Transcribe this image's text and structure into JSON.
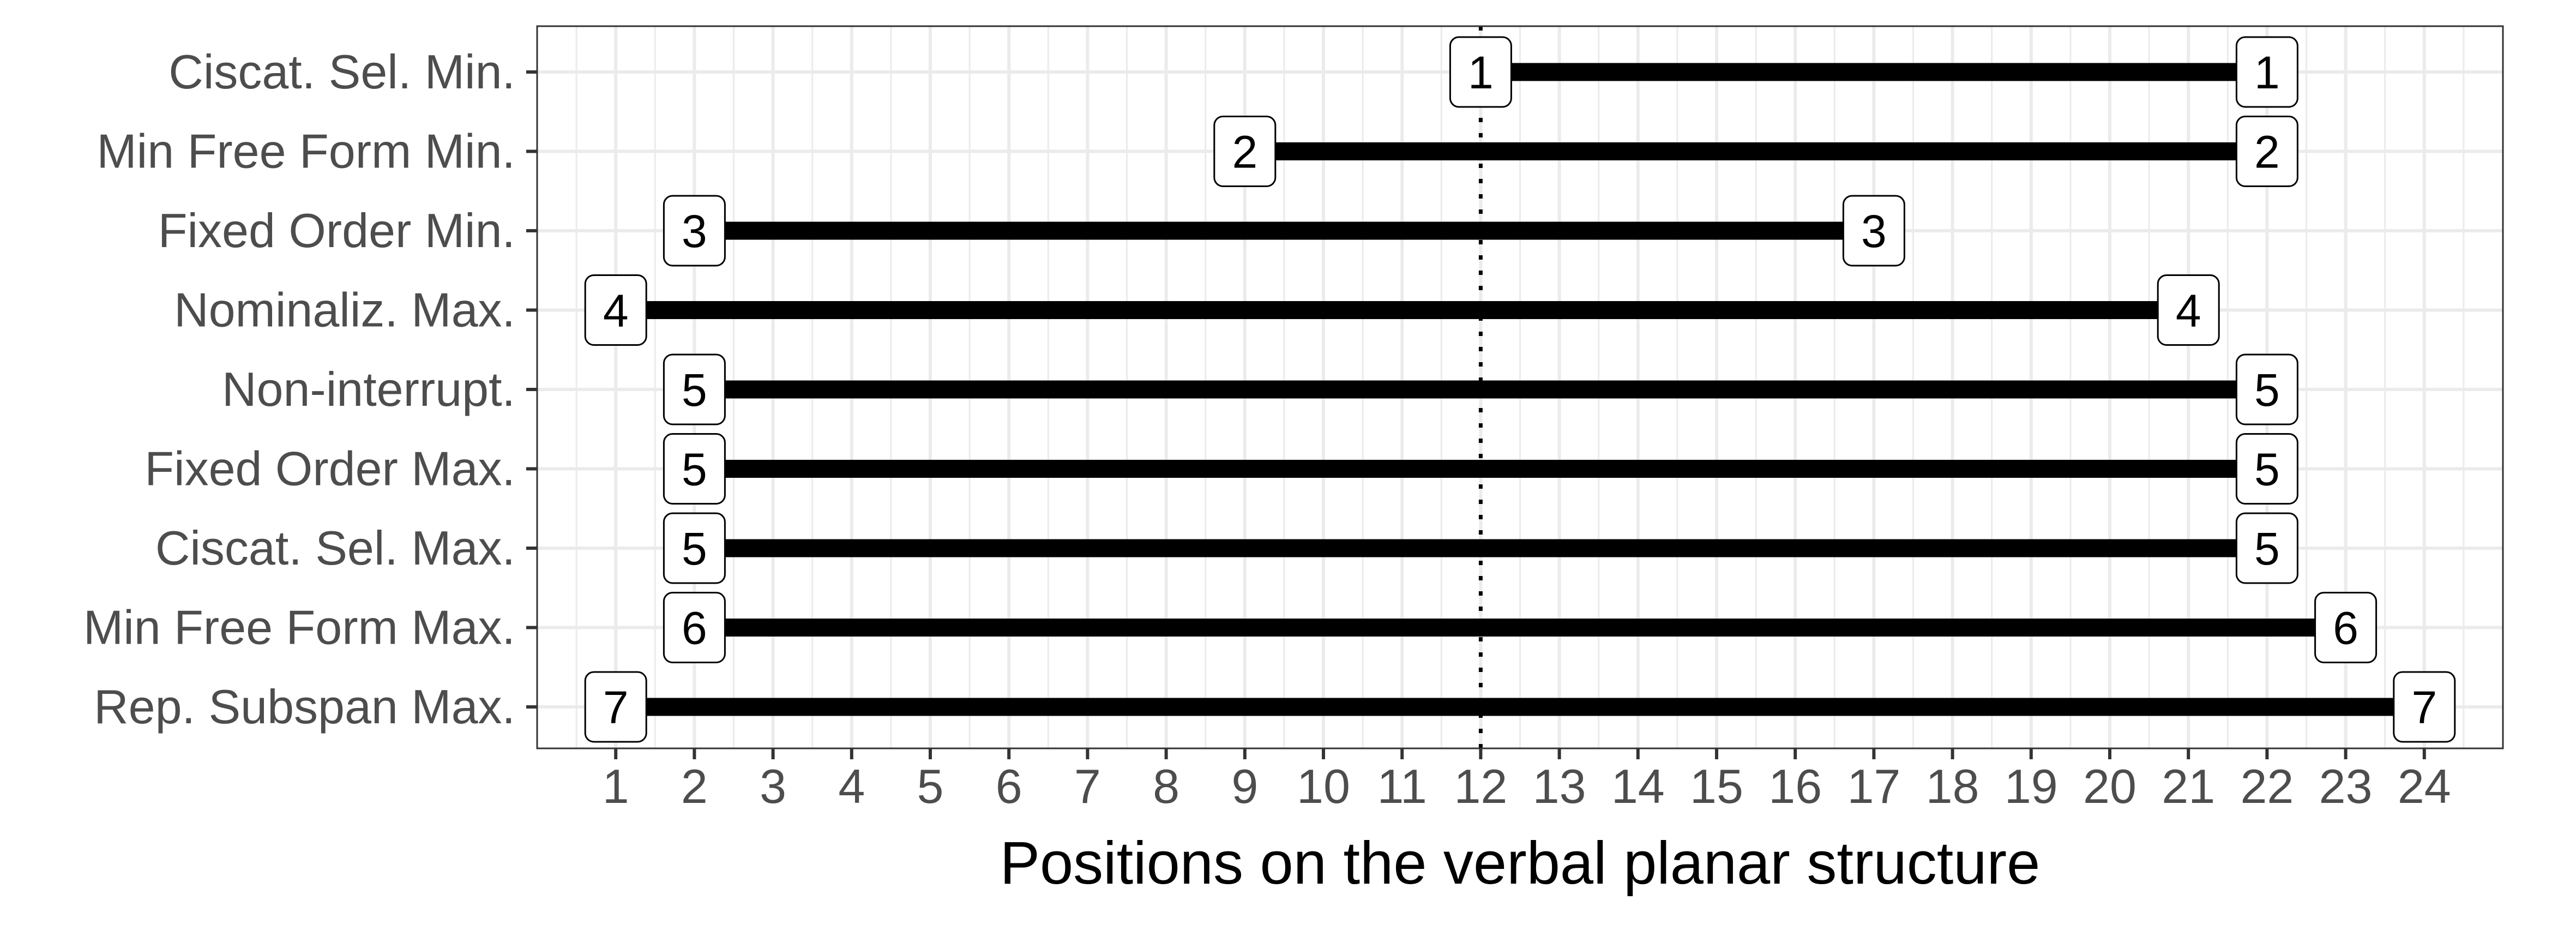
{
  "chart_data": {
    "type": "dumbbell-range",
    "title": "",
    "xlabel": "Positions on the verbal planar structure",
    "ylabel": "",
    "xlim": [
      0,
      25
    ],
    "xticks": [
      1,
      2,
      3,
      4,
      5,
      6,
      7,
      8,
      9,
      10,
      11,
      12,
      13,
      14,
      15,
      16,
      17,
      18,
      19,
      20,
      21,
      22,
      23,
      24
    ],
    "reference_line": {
      "x": 12,
      "style": "dotted"
    },
    "grid": true,
    "rows": [
      {
        "label": "Ciscat. Sel. Min.",
        "start": 12,
        "end": 22,
        "start_label": "1",
        "end_label": "1"
      },
      {
        "label": "Min Free Form Min.",
        "start": 9,
        "end": 22,
        "start_label": "2",
        "end_label": "2"
      },
      {
        "label": "Fixed Order Min.",
        "start": 2,
        "end": 17,
        "start_label": "3",
        "end_label": "3"
      },
      {
        "label": "Nominaliz. Max.",
        "start": 1,
        "end": 21,
        "start_label": "4",
        "end_label": "4"
      },
      {
        "label": "Non-interrupt.",
        "start": 2,
        "end": 22,
        "start_label": "5",
        "end_label": "5"
      },
      {
        "label": "Fixed Order Max.",
        "start": 2,
        "end": 22,
        "start_label": "5",
        "end_label": "5"
      },
      {
        "label": "Ciscat. Sel. Max.",
        "start": 2,
        "end": 22,
        "start_label": "5",
        "end_label": "5"
      },
      {
        "label": "Min Free Form Max.",
        "start": 2,
        "end": 23,
        "start_label": "6",
        "end_label": "6"
      },
      {
        "label": "Rep. Subspan Max.",
        "start": 1,
        "end": 24,
        "start_label": "7",
        "end_label": "7"
      }
    ],
    "colors": {
      "segment": "#000000",
      "label_fill": "#ffffff",
      "label_border": "#000000",
      "grid": "#ebebeb",
      "text": "#4d4d4d"
    }
  }
}
